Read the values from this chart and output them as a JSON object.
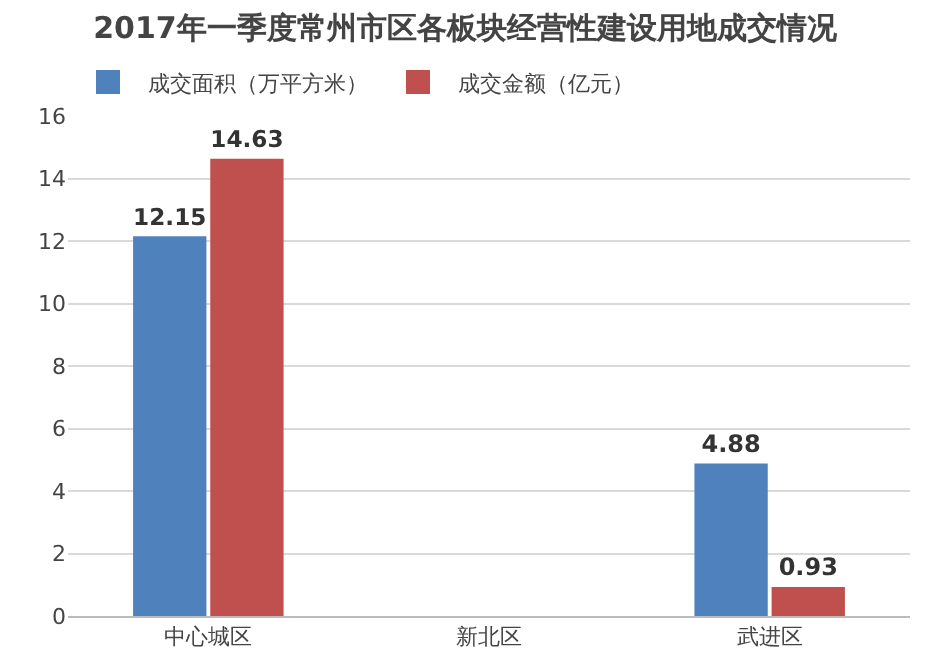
{
  "chart_data": {
    "type": "bar",
    "title": "2017年一季度常州市区各板块经营性建设用地成交情况",
    "categories": [
      "中心城区",
      "新北区",
      "武进区"
    ],
    "series": [
      {
        "name": "成交面积（万平方米）",
        "color": "#4f81bd",
        "values": [
          12.15,
          null,
          4.88
        ]
      },
      {
        "name": "成交金额（亿元）",
        "color": "#c0504d",
        "values": [
          14.63,
          null,
          0.93
        ]
      }
    ],
    "ylim": [
      0,
      16
    ],
    "yticks": [
      0,
      2,
      4,
      6,
      8,
      10,
      12,
      14,
      16
    ],
    "grid": "y",
    "legend": "top left",
    "data_labels": true
  }
}
